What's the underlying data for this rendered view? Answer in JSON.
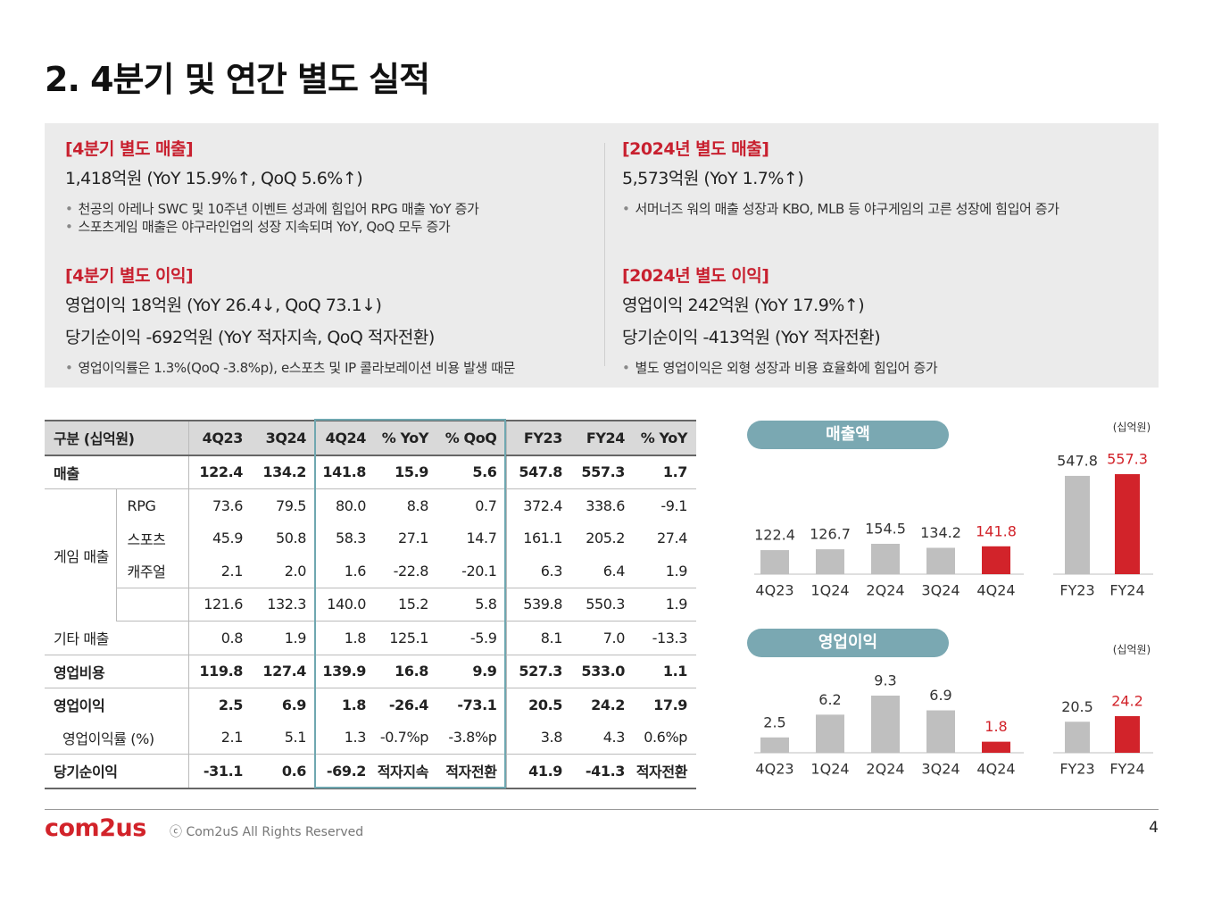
{
  "title": "2. 4분기 및 연간 별도 실적",
  "summary": [
    {
      "heading": "[4분기 별도 매출]",
      "lines": [
        "1,418억원 (YoY 15.9%↑, QoQ 5.6%↑)"
      ],
      "bullets": [
        "천공의 아레나 SWC 및 10주년 이벤트 성과에 힘입어 RPG 매출 YoY 증가",
        "스포츠게임 매출은 야구라인업의 성장 지속되며 YoY, QoQ 모두 증가"
      ]
    },
    {
      "heading": "[2024년 별도 매출]",
      "lines": [
        "5,573억원 (YoY 1.7%↑)"
      ],
      "bullets": [
        "서머너즈 워의 매출 성장과 KBO, MLB 등 야구게임의 고른 성장에 힘입어 증가"
      ]
    },
    {
      "heading": "[4분기 별도 이익]",
      "lines": [
        "영업이익 18억원 (YoY 26.4↓, QoQ 73.1↓)",
        "당기순이익 -692억원 (YoY 적자지속, QoQ 적자전환)"
      ],
      "bullets": [
        "영업이익률은 1.3%(QoQ -3.8%p), e스포츠 및 IP 콜라보레이션 비용 발생 때문"
      ]
    },
    {
      "heading": "[2024년 별도 이익]",
      "lines": [
        "영업이익 242억원 (YoY 17.9%↑)",
        "당기순이익 -413억원 (YoY 적자전환)"
      ],
      "bullets": [
        "별도 영업이익은 외형 성장과 비용 효율화에 힘입어 증가"
      ]
    }
  ],
  "table": {
    "header": [
      "구분 (십억원)",
      "4Q23",
      "3Q24",
      "4Q24",
      "% YoY",
      "% QoQ",
      "FY23",
      "FY24",
      "% YoY"
    ],
    "rows": [
      {
        "label": "매출",
        "bold": true,
        "cells": [
          "122.4",
          "134.2",
          "141.8",
          "15.9",
          "5.6",
          "547.8",
          "557.3",
          "1.7"
        ]
      },
      {
        "label": "게임 매출",
        "subrows": [
          {
            "label": "RPG",
            "cells": [
              "73.6",
              "79.5",
              "80.0",
              "8.8",
              "0.7",
              "372.4",
              "338.6",
              "-9.1"
            ]
          },
          {
            "label": "스포츠",
            "cells": [
              "45.9",
              "50.8",
              "58.3",
              "27.1",
              "14.7",
              "161.1",
              "205.2",
              "27.4"
            ]
          },
          {
            "label": "캐주얼",
            "cells": [
              "2.1",
              "2.0",
              "1.6",
              "-22.8",
              "-20.1",
              "6.3",
              "6.4",
              "1.9"
            ]
          },
          {
            "cells": [
              "121.6",
              "132.3",
              "140.0",
              "15.2",
              "5.8",
              "539.8",
              "550.3",
              "1.9"
            ]
          }
        ]
      },
      {
        "label": "기타 매출",
        "cells": [
          "0.8",
          "1.9",
          "1.8",
          "125.1",
          "-5.9",
          "8.1",
          "7.0",
          "-13.3"
        ]
      },
      {
        "label": "영업비용",
        "bold": true,
        "cells": [
          "119.8",
          "127.4",
          "139.9",
          "16.8",
          "9.9",
          "527.3",
          "533.0",
          "1.1"
        ]
      },
      {
        "label": "영업이익",
        "bold": true,
        "cells": [
          "2.5",
          "6.9",
          "1.8",
          "-26.4",
          "-73.1",
          "20.5",
          "24.2",
          "17.9"
        ]
      },
      {
        "label": "영업이익률 (%)",
        "cells": [
          "2.1",
          "5.1",
          "1.3",
          "-0.7%p",
          "-3.8%p",
          "3.8",
          "4.3",
          "0.6%p"
        ]
      },
      {
        "label": "당기순이익",
        "bold": true,
        "cells": [
          "-31.1",
          "0.6",
          "-69.2",
          "적자지속",
          "적자전환",
          "41.9",
          "-41.3",
          "적자전환"
        ]
      }
    ]
  },
  "chart_data": [
    {
      "type": "bar",
      "title": "매출액",
      "categories": [
        "4Q23",
        "1Q24",
        "2Q24",
        "3Q24",
        "4Q24"
      ],
      "values": [
        122.4,
        126.7,
        154.5,
        134.2,
        141.8
      ],
      "colors": [
        "#bfbfbf",
        "#bfbfbf",
        "#bfbfbf",
        "#bfbfbf",
        "#d2232a"
      ]
    },
    {
      "type": "bar",
      "unit": "(십억원)",
      "categories": [
        "FY23",
        "FY24"
      ],
      "values": [
        547.8,
        557.3
      ],
      "colors": [
        "#bfbfbf",
        "#d2232a"
      ]
    },
    {
      "type": "bar",
      "title": "영업이익",
      "categories": [
        "4Q23",
        "1Q24",
        "2Q24",
        "3Q24",
        "4Q24"
      ],
      "values": [
        2.5,
        6.2,
        9.3,
        6.9,
        1.8
      ],
      "colors": [
        "#bfbfbf",
        "#bfbfbf",
        "#bfbfbf",
        "#bfbfbf",
        "#d2232a"
      ]
    },
    {
      "type": "bar",
      "unit": "(십억원)",
      "categories": [
        "FY23",
        "FY24"
      ],
      "values": [
        20.5,
        24.2
      ],
      "colors": [
        "#bfbfbf",
        "#d2232a"
      ]
    }
  ],
  "footer": {
    "logo": "com2us",
    "copyright": "ⓒ Com2uS All Rights Reserved",
    "page": "4"
  }
}
